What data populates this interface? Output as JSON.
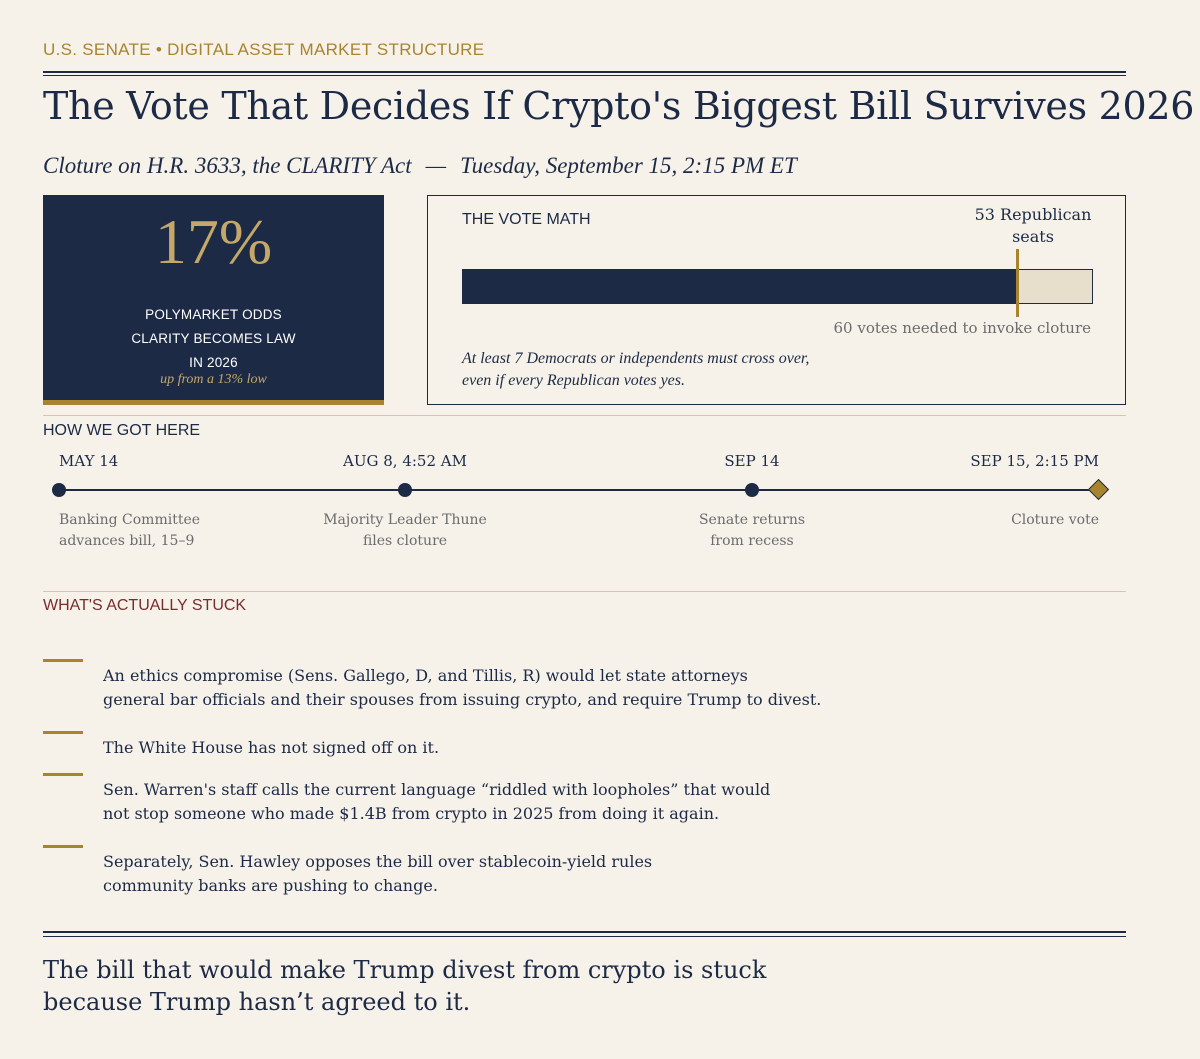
{
  "header": {
    "kicker": "U.S. SENATE  •  DIGITAL ASSET MARKET STRUCTURE",
    "title": "The Vote That Decides If Crypto's Biggest Bill Survives 2026",
    "subtitle_left": "Cloture on H.R. 3633, the CLARITY Act",
    "subtitle_sep": "—",
    "subtitle_right": "Tuesday, September 15, 2:15 PM ET"
  },
  "stat": {
    "value": "17%",
    "label_line1": "POLYMARKET ODDS",
    "label_line2": "CLARITY BECOMES LAW",
    "label_line3": "IN 2026",
    "sub": "up from a 13% low"
  },
  "vote_math": {
    "heading": "THE VOTE MATH",
    "seats_label_line1": "53 Republican",
    "seats_label_line2": "seats",
    "republican_seats": 53,
    "needed_votes": 60,
    "needed_label": "60 votes needed to invoke cloture",
    "note_line1": "At least 7 Democrats or independents must cross over,",
    "note_line2": "even if every Republican votes yes.",
    "colors": {
      "fill": "#1c2a46",
      "remaining": "#e7dfcb",
      "marker": "#a8842f"
    }
  },
  "timeline": {
    "heading": "HOW WE GOT HERE",
    "events": [
      {
        "date": "MAY 14",
        "desc_line1": "Banking Committee",
        "desc_line2": "advances bill, 15–9",
        "marker": "dot"
      },
      {
        "date": "AUG 8, 4:52 AM",
        "desc_line1": "Majority Leader Thune",
        "desc_line2": "files cloture",
        "marker": "dot"
      },
      {
        "date": "SEP 14",
        "desc_line1": "Senate returns",
        "desc_line2": "from recess",
        "marker": "dot"
      },
      {
        "date": "SEP 15, 2:15 PM",
        "desc_line1": "Cloture vote",
        "desc_line2": "",
        "marker": "diamond"
      }
    ]
  },
  "stuck": {
    "heading": "WHAT'S ACTUALLY STUCK",
    "heading_color": "#7a2b2b",
    "items": [
      {
        "line1": "An ethics compromise (Sens. Gallego, D, and Tillis, R) would let state attorneys",
        "line2": "general bar officials and their spouses from issuing crypto, and require Trump to divest."
      },
      {
        "line1": "The White House has not signed off on it.",
        "line2": ""
      },
      {
        "line1": "Sen. Warren's staff calls the current language “riddled with loopholes” that would",
        "line2": "not stop someone who made $1.4B from crypto in 2025 from doing it again."
      },
      {
        "line1": "Separately, Sen. Hawley opposes the bill over stablecoin-yield rules",
        "line2": "community banks are pushing to change."
      }
    ]
  },
  "conclusion": {
    "line1": "The bill that would make Trump divest from crypto is stuck",
    "line2": "because Trump hasn’t agreed to it."
  }
}
